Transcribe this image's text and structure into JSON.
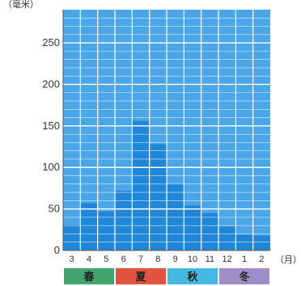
{
  "chart_data": {
    "type": "bar",
    "ylabel": "（毫米）",
    "xlabel": "（月）",
    "categories": [
      "3",
      "4",
      "5",
      "6",
      "7",
      "8",
      "9",
      "10",
      "11",
      "12",
      "1",
      "2"
    ],
    "values": [
      31,
      57,
      47,
      72,
      156,
      128,
      80,
      54,
      45,
      29,
      19,
      18
    ],
    "ylim": [
      0,
      290
    ],
    "yticks": [
      "0",
      "50",
      "100",
      "150",
      "200",
      "250"
    ],
    "ytick_values": [
      0,
      50,
      100,
      150,
      200,
      250
    ],
    "grid": true,
    "plot_background": "#4aa6e6",
    "bar_color": "#1f86d8",
    "grid_color": "#ffffff",
    "seasons": [
      {
        "label": "春",
        "months": 3,
        "color": "#43a56e"
      },
      {
        "label": "夏",
        "months": 3,
        "color": "#e2543f"
      },
      {
        "label": "秋",
        "months": 3,
        "color": "#44b9e2"
      },
      {
        "label": "冬",
        "months": 3,
        "color": "#9e8ec8"
      }
    ]
  }
}
